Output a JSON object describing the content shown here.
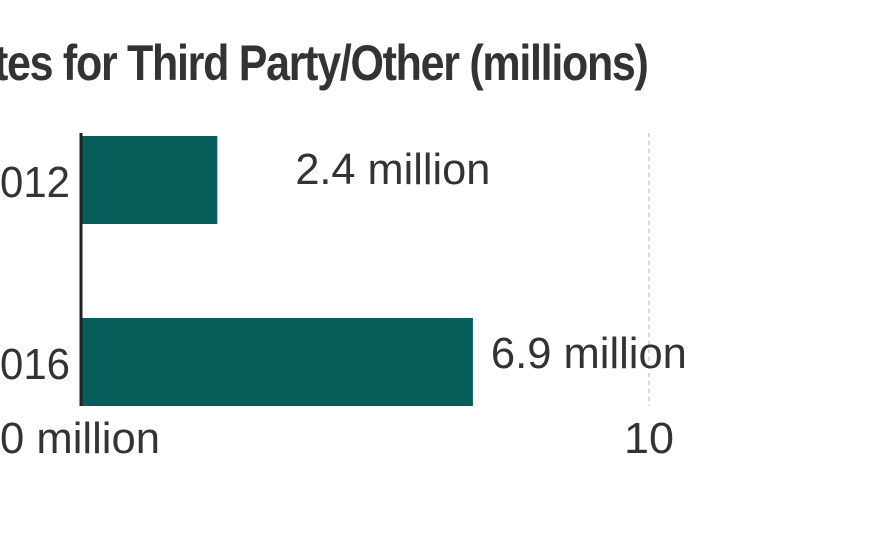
{
  "chart_data": {
    "type": "bar",
    "orientation": "horizontal",
    "title": "tes for Third Party/Other (millions)",
    "categories": [
      "012",
      "016"
    ],
    "values": [
      2.4,
      6.9
    ],
    "value_labels": [
      "2.4 million",
      "6.9 million"
    ],
    "x_ticks": [
      {
        "value": 0,
        "label": "0 million"
      },
      {
        "value": 10,
        "label": "10"
      }
    ],
    "xlim": [
      0,
      10
    ],
    "gridlines": "dashed",
    "colors": {
      "bar": "#065d5a",
      "text": "#333333",
      "grid": "#cccccc"
    }
  }
}
